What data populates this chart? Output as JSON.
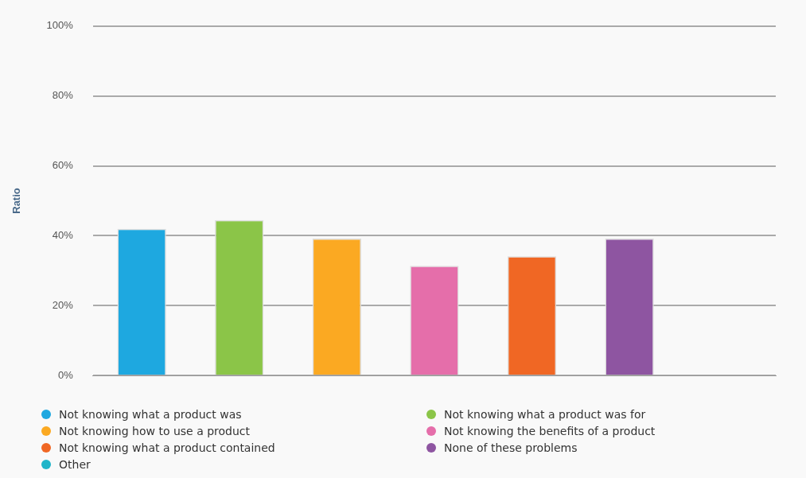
{
  "chart_data": {
    "type": "bar",
    "ylabel": "Ratio",
    "categories": [
      null,
      null,
      null,
      null,
      null,
      null,
      null
    ],
    "series": [
      {
        "name": "Not knowing what a product was",
        "color": "#1ea8e0",
        "values": [
          42,
          null,
          null,
          null,
          null,
          null,
          null
        ]
      },
      {
        "name": "Not knowing what a product was for",
        "color": "#8bc548",
        "values": [
          null,
          44.5,
          null,
          null,
          null,
          null,
          null
        ]
      },
      {
        "name": "Not knowing how to use a product",
        "color": "#fba922",
        "values": [
          null,
          null,
          39.2,
          null,
          null,
          null,
          null
        ]
      },
      {
        "name": "Not knowing the benefits of a product",
        "color": "#e56eaa",
        "values": [
          null,
          null,
          null,
          31.4,
          null,
          null,
          null
        ]
      },
      {
        "name": "Not knowing what a product contained",
        "color": "#f06724",
        "values": [
          null,
          null,
          null,
          null,
          34.1,
          null,
          null
        ]
      },
      {
        "name": "None of these problems",
        "color": "#8e55a1",
        "values": [
          null,
          null,
          null,
          null,
          null,
          39.2,
          null
        ]
      },
      {
        "name": "Other",
        "color": "#1fb5c9",
        "values": [
          null,
          null,
          null,
          null,
          null,
          null,
          0
        ]
      }
    ],
    "ylim": [
      0,
      100
    ],
    "yticks": [
      {
        "value": 0,
        "label": "0%"
      },
      {
        "value": 20,
        "label": "20%"
      },
      {
        "value": 40,
        "label": "40%"
      },
      {
        "value": 60,
        "label": "60%"
      },
      {
        "value": 80,
        "label": "80%"
      },
      {
        "value": 100,
        "label": "100%"
      }
    ],
    "grid": "y",
    "legend": "bottom"
  }
}
